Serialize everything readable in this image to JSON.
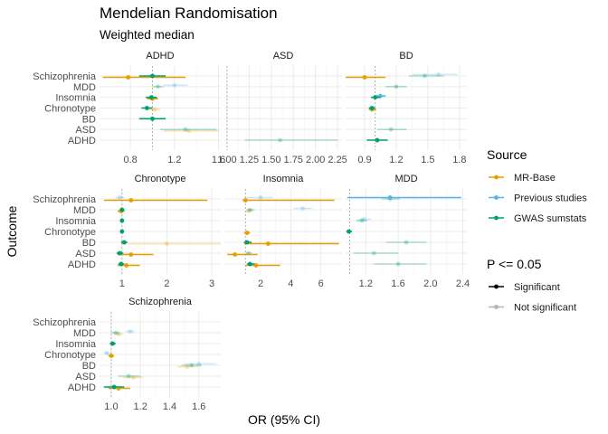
{
  "title": "Mendelian Randomisation",
  "subtitle": "Weighted median",
  "xlabel": "OR (95% CI)",
  "ylabel": "Outcome",
  "colors": {
    "MR-Base": "#E69F00",
    "Previous studies": "#56B4E9",
    "GWAS sumstats": "#009E73"
  },
  "legend": {
    "source_title": "Source",
    "source_items": [
      "MR-Base",
      "Previous studies",
      "GWAS sumstats"
    ],
    "p_title": "P <= 0.05",
    "p_items": [
      "Significant",
      "Not significant"
    ]
  },
  "chart_data": {
    "type": "forest",
    "outcomes": [
      "Schizophrenia",
      "MDD",
      "Insomnia",
      "Chronotype",
      "BD",
      "ASD",
      "ADHD"
    ],
    "panels": [
      {
        "title": "ADHD",
        "xlim": [
          0.52,
          1.62
        ],
        "xticks": [
          0.8,
          1.2,
          1.6
        ],
        "xtick_labels": [
          "0.8",
          "1.2",
          "1.6"
        ],
        "ref": 1.0,
        "points": [
          {
            "outcome": "Schizophrenia",
            "source": "MR-Base",
            "or": 0.78,
            "lo": 0.55,
            "hi": 1.3,
            "sig": true
          },
          {
            "outcome": "Schizophrenia",
            "source": "GWAS sumstats",
            "or": 1.0,
            "lo": 0.88,
            "hi": 1.12,
            "sig": true
          },
          {
            "outcome": "MDD",
            "source": "Previous studies",
            "or": 1.2,
            "lo": 1.1,
            "hi": 1.32,
            "sig": false
          },
          {
            "outcome": "MDD",
            "source": "GWAS sumstats",
            "or": 1.05,
            "lo": 1.0,
            "hi": 1.1,
            "sig": false
          },
          {
            "outcome": "Insomnia",
            "source": "MR-Base",
            "or": 1.0,
            "lo": 0.95,
            "hi": 1.05,
            "sig": true
          },
          {
            "outcome": "Insomnia",
            "source": "GWAS sumstats",
            "or": 0.99,
            "lo": 0.94,
            "hi": 1.04,
            "sig": true
          },
          {
            "outcome": "Chronotype",
            "source": "MR-Base",
            "or": 1.02,
            "lo": 0.97,
            "hi": 1.07,
            "sig": false
          },
          {
            "outcome": "Chronotype",
            "source": "GWAS sumstats",
            "or": 0.95,
            "lo": 0.9,
            "hi": 1.0,
            "sig": true
          },
          {
            "outcome": "BD",
            "source": "GWAS sumstats",
            "or": 1.0,
            "lo": 0.88,
            "hi": 1.12,
            "sig": true
          },
          {
            "outcome": "ASD",
            "source": "MR-Base",
            "or": 1.33,
            "lo": 1.1,
            "hi": 1.6,
            "sig": false
          },
          {
            "outcome": "ASD",
            "source": "GWAS sumstats",
            "or": 1.3,
            "lo": 1.07,
            "hi": 1.58,
            "sig": false
          }
        ]
      },
      {
        "title": "ASD",
        "xlim": [
          0.97,
          2.3
        ],
        "xticks": [
          1.0,
          1.25,
          1.5,
          1.75,
          2.0,
          2.25
        ],
        "xtick_labels": [
          "1.00",
          "1.25",
          "1.50",
          "1.75",
          "2.00",
          "2.25"
        ],
        "ref": 1.0,
        "points": [
          {
            "outcome": "ADHD",
            "source": "GWAS sumstats",
            "or": 1.6,
            "lo": 1.2,
            "hi": 2.25,
            "sig": false
          }
        ]
      },
      {
        "title": "BD",
        "xlim": [
          0.72,
          1.87
        ],
        "xticks": [
          0.9,
          1.2,
          1.5,
          1.8
        ],
        "xtick_labels": [
          "0.9",
          "1.2",
          "1.5",
          "1.8"
        ],
        "ref": 1.0,
        "points": [
          {
            "outcome": "Schizophrenia",
            "source": "MR-Base",
            "or": 0.9,
            "lo": 0.72,
            "hi": 1.1,
            "sig": true
          },
          {
            "outcome": "Schizophrenia",
            "source": "Previous studies",
            "or": 1.6,
            "lo": 1.35,
            "hi": 1.78,
            "sig": false
          },
          {
            "outcome": "Schizophrenia",
            "source": "GWAS sumstats",
            "or": 1.47,
            "lo": 1.32,
            "hi": 1.65,
            "sig": false
          },
          {
            "outcome": "MDD",
            "source": "GWAS sumstats",
            "or": 1.2,
            "lo": 1.1,
            "hi": 1.3,
            "sig": false
          },
          {
            "outcome": "Insomnia",
            "source": "Previous studies",
            "or": 1.05,
            "lo": 1.0,
            "hi": 1.1,
            "sig": true
          },
          {
            "outcome": "Insomnia",
            "source": "GWAS sumstats",
            "or": 1.0,
            "lo": 0.96,
            "hi": 1.05,
            "sig": true
          },
          {
            "outcome": "Chronotype",
            "source": "MR-Base",
            "or": 0.97,
            "lo": 0.94,
            "hi": 1.01,
            "sig": true
          },
          {
            "outcome": "Chronotype",
            "source": "GWAS sumstats",
            "or": 0.97,
            "lo": 0.94,
            "hi": 1.0,
            "sig": true
          },
          {
            "outcome": "ASD",
            "source": "GWAS sumstats",
            "or": 1.15,
            "lo": 1.02,
            "hi": 1.3,
            "sig": false
          },
          {
            "outcome": "ADHD",
            "source": "GWAS sumstats",
            "or": 1.02,
            "lo": 0.92,
            "hi": 1.12,
            "sig": true
          }
        ]
      },
      {
        "title": "Chronotype",
        "xlim": [
          0.5,
          3.2
        ],
        "xticks": [
          1,
          2,
          3
        ],
        "xtick_labels": [
          "1",
          "2",
          "3"
        ],
        "ref": 1.0,
        "points": [
          {
            "outcome": "Schizophrenia",
            "source": "MR-Base",
            "or": 1.2,
            "lo": 0.6,
            "hi": 2.9,
            "sig": true
          },
          {
            "outcome": "Schizophrenia",
            "source": "Previous studies",
            "or": 0.95,
            "lo": 0.85,
            "hi": 1.05,
            "sig": false
          },
          {
            "outcome": "MDD",
            "source": "MR-Base",
            "or": 0.98,
            "lo": 0.9,
            "hi": 1.06,
            "sig": true
          },
          {
            "outcome": "MDD",
            "source": "GWAS sumstats",
            "or": 1.0,
            "lo": 0.95,
            "hi": 1.05,
            "sig": true
          },
          {
            "outcome": "Insomnia",
            "source": "GWAS sumstats",
            "or": 1.0,
            "lo": 0.96,
            "hi": 1.04,
            "sig": true
          },
          {
            "outcome": "Chronotype",
            "source": "GWAS sumstats",
            "or": 1.0,
            "lo": 0.97,
            "hi": 1.03,
            "sig": true
          },
          {
            "outcome": "BD",
            "source": "MR-Base",
            "or": 2.0,
            "lo": 1.0,
            "hi": 3.2,
            "sig": false
          },
          {
            "outcome": "BD",
            "source": "GWAS sumstats",
            "or": 1.05,
            "lo": 0.98,
            "hi": 1.12,
            "sig": true
          },
          {
            "outcome": "ASD",
            "source": "MR-Base",
            "or": 1.2,
            "lo": 0.9,
            "hi": 1.7,
            "sig": true
          },
          {
            "outcome": "ASD",
            "source": "GWAS sumstats",
            "or": 0.95,
            "lo": 0.88,
            "hi": 1.03,
            "sig": true
          },
          {
            "outcome": "ADHD",
            "source": "MR-Base",
            "or": 1.1,
            "lo": 0.9,
            "hi": 1.4,
            "sig": true
          },
          {
            "outcome": "ADHD",
            "source": "GWAS sumstats",
            "or": 0.98,
            "lo": 0.92,
            "hi": 1.05,
            "sig": true
          }
        ]
      },
      {
        "title": "Insomnia",
        "xlim": [
          -0.4,
          7.4
        ],
        "xticks": [
          2,
          4,
          6
        ],
        "xtick_labels": [
          "2",
          "4",
          "6"
        ],
        "ref": 1.0,
        "points": [
          {
            "outcome": "Schizophrenia",
            "source": "MR-Base",
            "or": 1.0,
            "lo": 0.8,
            "hi": 6.9,
            "sig": true
          },
          {
            "outcome": "Schizophrenia",
            "source": "Previous studies",
            "or": 2.0,
            "lo": 1.0,
            "hi": 2.8,
            "sig": false
          },
          {
            "outcome": "MDD",
            "source": "Previous studies",
            "or": 4.8,
            "lo": 4.2,
            "hi": 5.4,
            "sig": false
          },
          {
            "outcome": "MDD",
            "source": "MR-Base",
            "or": 1.2,
            "lo": 1.0,
            "hi": 1.5,
            "sig": false
          },
          {
            "outcome": "MDD",
            "source": "GWAS sumstats",
            "or": 1.3,
            "lo": 1.1,
            "hi": 1.6,
            "sig": false
          },
          {
            "outcome": "Chronotype",
            "source": "MR-Base",
            "or": 1.1,
            "lo": 0.9,
            "hi": 1.3,
            "sig": true
          },
          {
            "outcome": "BD",
            "source": "MR-Base",
            "or": 2.5,
            "lo": 0.9,
            "hi": 7.2,
            "sig": true
          },
          {
            "outcome": "BD",
            "source": "GWAS sumstats",
            "or": 1.1,
            "lo": 0.9,
            "hi": 1.4,
            "sig": true
          },
          {
            "outcome": "ASD",
            "source": "MR-Base",
            "or": 0.3,
            "lo": -0.2,
            "hi": 1.8,
            "sig": true
          },
          {
            "outcome": "ASD",
            "source": "GWAS sumstats",
            "or": 1.2,
            "lo": 1.0,
            "hi": 1.4,
            "sig": false
          },
          {
            "outcome": "ADHD",
            "source": "MR-Base",
            "or": 1.7,
            "lo": 1.0,
            "hi": 3.3,
            "sig": true
          },
          {
            "outcome": "ADHD",
            "source": "GWAS sumstats",
            "or": 1.3,
            "lo": 1.1,
            "hi": 1.6,
            "sig": true
          }
        ]
      },
      {
        "title": "MDD",
        "xlim": [
          0.95,
          2.45
        ],
        "xticks": [
          1.2,
          1.6,
          2.0,
          2.4
        ],
        "xtick_labels": [
          "1.2",
          "1.6",
          "2.0",
          "2.4"
        ],
        "ref": 1.0,
        "points": [
          {
            "outcome": "Schizophrenia",
            "source": "Previous studies",
            "or": 1.5,
            "lo": 0.97,
            "hi": 2.38,
            "sig": true
          },
          {
            "outcome": "Schizophrenia",
            "source": "GWAS sumstats",
            "or": 1.5,
            "lo": 1.4,
            "hi": 1.62,
            "sig": false
          },
          {
            "outcome": "Insomnia",
            "source": "Previous studies",
            "or": 1.18,
            "lo": 1.1,
            "hi": 1.27,
            "sig": false
          },
          {
            "outcome": "Insomnia",
            "source": "GWAS sumstats",
            "or": 1.15,
            "lo": 1.08,
            "hi": 1.22,
            "sig": false
          },
          {
            "outcome": "Chronotype",
            "source": "GWAS sumstats",
            "or": 0.99,
            "lo": 0.96,
            "hi": 1.03,
            "sig": true
          },
          {
            "outcome": "BD",
            "source": "GWAS sumstats",
            "or": 1.7,
            "lo": 1.45,
            "hi": 1.95,
            "sig": false
          },
          {
            "outcome": "ASD",
            "source": "GWAS sumstats",
            "or": 1.3,
            "lo": 1.05,
            "hi": 1.6,
            "sig": false
          },
          {
            "outcome": "ADHD",
            "source": "GWAS sumstats",
            "or": 1.6,
            "lo": 1.3,
            "hi": 1.95,
            "sig": false
          }
        ]
      },
      {
        "title": "Schizophrenia",
        "xlim": [
          0.92,
          1.75
        ],
        "xticks": [
          1.0,
          1.2,
          1.4,
          1.6
        ],
        "xtick_labels": [
          "1.0",
          "1.2",
          "1.4",
          "1.6"
        ],
        "ref": 1.0,
        "points": [
          {
            "outcome": "MDD",
            "source": "MR-Base",
            "or": 1.05,
            "lo": 1.02,
            "hi": 1.08,
            "sig": false
          },
          {
            "outcome": "MDD",
            "source": "Previous studies",
            "or": 1.13,
            "lo": 1.1,
            "hi": 1.16,
            "sig": false
          },
          {
            "outcome": "MDD",
            "source": "GWAS sumstats",
            "or": 1.03,
            "lo": 1.0,
            "hi": 1.06,
            "sig": false
          },
          {
            "outcome": "Insomnia",
            "source": "GWAS sumstats",
            "or": 1.01,
            "lo": 0.99,
            "hi": 1.03,
            "sig": true
          },
          {
            "outcome": "Chronotype",
            "source": "MR-Base",
            "or": 1.0,
            "lo": 0.98,
            "hi": 1.02,
            "sig": true
          },
          {
            "outcome": "Chronotype",
            "source": "Previous studies",
            "or": 0.97,
            "lo": 0.95,
            "hi": 0.99,
            "sig": false
          },
          {
            "outcome": "BD",
            "source": "Previous studies",
            "or": 1.6,
            "lo": 1.5,
            "hi": 1.72,
            "sig": false
          },
          {
            "outcome": "BD",
            "source": "MR-Base",
            "or": 1.52,
            "lo": 1.45,
            "hi": 1.6,
            "sig": false
          },
          {
            "outcome": "BD",
            "source": "GWAS sumstats",
            "or": 1.55,
            "lo": 1.48,
            "hi": 1.62,
            "sig": false
          },
          {
            "outcome": "ASD",
            "source": "MR-Base",
            "or": 1.15,
            "lo": 1.08,
            "hi": 1.22,
            "sig": false
          },
          {
            "outcome": "ASD",
            "source": "GWAS sumstats",
            "or": 1.12,
            "lo": 1.05,
            "hi": 1.2,
            "sig": false
          },
          {
            "outcome": "ADHD",
            "source": "MR-Base",
            "or": 1.05,
            "lo": 0.98,
            "hi": 1.13,
            "sig": true
          },
          {
            "outcome": "ADHD",
            "source": "GWAS sumstats",
            "or": 1.02,
            "lo": 0.95,
            "hi": 1.09,
            "sig": true
          }
        ]
      }
    ]
  }
}
